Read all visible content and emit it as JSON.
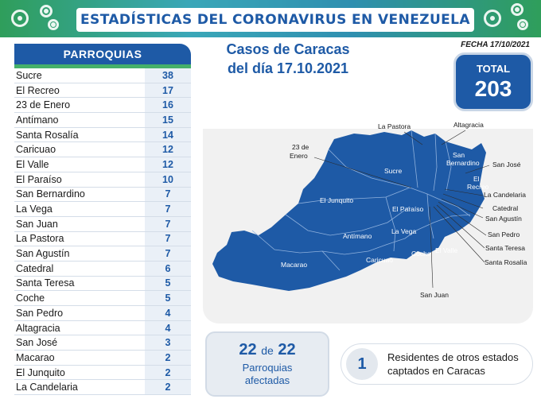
{
  "header": {
    "title": "ESTADÍSTICAS DEL CORONAVIRUS EN VENEZUELA"
  },
  "parroquias": {
    "title": "PARROQUIAS",
    "rows": [
      {
        "name": "Sucre",
        "value": "38"
      },
      {
        "name": "El Recreo",
        "value": "17"
      },
      {
        "name": "23 de Enero",
        "value": "16"
      },
      {
        "name": "Antímano",
        "value": "15"
      },
      {
        "name": "Santa Rosalía",
        "value": "14"
      },
      {
        "name": "Caricuao",
        "value": "12"
      },
      {
        "name": "El Valle",
        "value": "12"
      },
      {
        "name": "El Paraíso",
        "value": "10"
      },
      {
        "name": "San Bernardino",
        "value": "7"
      },
      {
        "name": "La Vega",
        "value": "7"
      },
      {
        "name": "San Juan",
        "value": "7"
      },
      {
        "name": "La Pastora",
        "value": "7"
      },
      {
        "name": "San Agustín",
        "value": "7"
      },
      {
        "name": "Catedral",
        "value": "6"
      },
      {
        "name": "Santa Teresa",
        "value": "5"
      },
      {
        "name": "Coche",
        "value": "5"
      },
      {
        "name": "San Pedro",
        "value": "4"
      },
      {
        "name": "Altagracia",
        "value": "4"
      },
      {
        "name": "San José",
        "value": "3"
      },
      {
        "name": "Macarao",
        "value": "2"
      },
      {
        "name": "El Junquito",
        "value": "2"
      },
      {
        "name": "La Candelaria",
        "value": "2"
      }
    ]
  },
  "subtitle": {
    "line1": "Casos de Caracas",
    "line2": "del día 17.10.2021"
  },
  "fecha": "FECHA 17/10/2021",
  "total": {
    "label": "TOTAL",
    "value": "203"
  },
  "map": {
    "fill_color": "#1e5aa6",
    "inner_labels": {
      "sucre": "Sucre",
      "junquito": "El Junquito",
      "antimano": "Antímano",
      "macarao": "Macarao",
      "caricuao": "Caricuao",
      "vega": "La Vega",
      "paraiso": "El Paraíso",
      "coche": "Coche",
      "valle": "El Valle",
      "san_bernardino_1": "San",
      "san_bernardino_2": "Bernardino",
      "recreo_1": "El",
      "recreo_2": "Recreo"
    },
    "outer_labels": {
      "pastora": "La Pastora",
      "altagracia": "Altagracia",
      "enero_1": "23 de",
      "enero_2": "Enero",
      "san_jose": "San José",
      "candelaria": "La Candelaria",
      "catedral": "Catedral",
      "san_agustin": "San Agustín",
      "san_pedro": "San Pedro",
      "santa_teresa": "Santa Teresa",
      "santa_rosalia": "Santa Rosalía",
      "san_juan": "San Juan"
    }
  },
  "affected": {
    "count": "22",
    "of": "de",
    "total": "22",
    "line1": "Parroquias",
    "line2": "afectadas"
  },
  "residents": {
    "count": "1",
    "text": "Residentes de otros estados captados en Caracas"
  },
  "colors": {
    "brand_blue": "#1e5aa6",
    "banner_green": "#2f9e5b"
  },
  "icons": [
    "virus-icon"
  ]
}
